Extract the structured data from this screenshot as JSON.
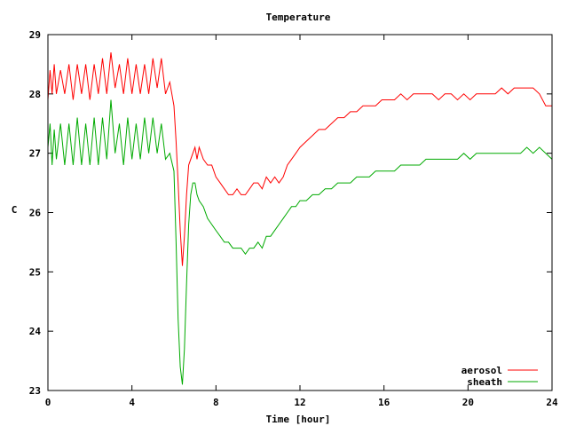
{
  "chart_data": {
    "type": "line",
    "title": "Temperature",
    "xlabel": "Time [hour]",
    "ylabel": "C",
    "xlim": [
      0,
      24
    ],
    "ylim": [
      23,
      29
    ],
    "xticks": [
      0,
      4,
      8,
      12,
      16,
      20,
      24
    ],
    "yticks": [
      23,
      24,
      25,
      26,
      27,
      28,
      29
    ],
    "grid": false,
    "legend_position": "bottom-right",
    "series": [
      {
        "name": "aerosol",
        "color": "#ff0000",
        "x": [
          0.0,
          0.1,
          0.2,
          0.3,
          0.4,
          0.6,
          0.8,
          1.0,
          1.2,
          1.4,
          1.6,
          1.8,
          2.0,
          2.2,
          2.4,
          2.6,
          2.8,
          3.0,
          3.2,
          3.4,
          3.6,
          3.8,
          4.0,
          4.2,
          4.4,
          4.6,
          4.8,
          5.0,
          5.2,
          5.4,
          5.6,
          5.8,
          6.0,
          6.1,
          6.2,
          6.3,
          6.4,
          6.5,
          6.6,
          6.7,
          6.8,
          6.9,
          7.0,
          7.1,
          7.2,
          7.4,
          7.6,
          7.8,
          8.0,
          8.2,
          8.4,
          8.6,
          8.8,
          9.0,
          9.2,
          9.4,
          9.6,
          9.8,
          10.0,
          10.2,
          10.4,
          10.6,
          10.8,
          11.0,
          11.2,
          11.4,
          11.6,
          11.8,
          12.0,
          12.3,
          12.6,
          12.9,
          13.2,
          13.5,
          13.8,
          14.1,
          14.4,
          14.7,
          15.0,
          15.3,
          15.6,
          15.9,
          16.2,
          16.5,
          16.8,
          17.1,
          17.4,
          17.7,
          18.0,
          18.3,
          18.6,
          18.9,
          19.2,
          19.5,
          19.8,
          20.1,
          20.4,
          20.7,
          21.0,
          21.3,
          21.6,
          21.9,
          22.2,
          22.5,
          22.8,
          23.1,
          23.4,
          23.7,
          24.0
        ],
        "y": [
          27.9,
          28.4,
          28.0,
          28.5,
          28.0,
          28.4,
          28.0,
          28.5,
          27.9,
          28.5,
          28.0,
          28.5,
          27.9,
          28.5,
          28.0,
          28.6,
          28.0,
          28.7,
          28.1,
          28.5,
          28.0,
          28.6,
          28.0,
          28.5,
          28.0,
          28.5,
          28.0,
          28.6,
          28.1,
          28.6,
          28.0,
          28.2,
          27.8,
          27.2,
          26.5,
          25.7,
          25.1,
          25.6,
          26.3,
          26.8,
          26.9,
          27.0,
          27.1,
          26.9,
          27.1,
          26.9,
          26.8,
          26.8,
          26.6,
          26.5,
          26.4,
          26.3,
          26.3,
          26.4,
          26.3,
          26.3,
          26.4,
          26.5,
          26.5,
          26.4,
          26.6,
          26.5,
          26.6,
          26.5,
          26.6,
          26.8,
          26.9,
          27.0,
          27.1,
          27.2,
          27.3,
          27.4,
          27.4,
          27.5,
          27.6,
          27.6,
          27.7,
          27.7,
          27.8,
          27.8,
          27.8,
          27.9,
          27.9,
          27.9,
          28.0,
          27.9,
          28.0,
          28.0,
          28.0,
          28.0,
          27.9,
          28.0,
          28.0,
          27.9,
          28.0,
          27.9,
          28.0,
          28.0,
          28.0,
          28.0,
          28.1,
          28.0,
          28.1,
          28.1,
          28.1,
          28.1,
          28.0,
          27.8,
          27.8
        ]
      },
      {
        "name": "sheath",
        "color": "#00aa00",
        "x": [
          0.0,
          0.1,
          0.2,
          0.3,
          0.4,
          0.6,
          0.8,
          1.0,
          1.2,
          1.4,
          1.6,
          1.8,
          2.0,
          2.2,
          2.4,
          2.6,
          2.8,
          3.0,
          3.2,
          3.4,
          3.6,
          3.8,
          4.0,
          4.2,
          4.4,
          4.6,
          4.8,
          5.0,
          5.2,
          5.4,
          5.6,
          5.8,
          6.0,
          6.1,
          6.2,
          6.3,
          6.4,
          6.5,
          6.6,
          6.7,
          6.8,
          6.9,
          7.0,
          7.1,
          7.2,
          7.4,
          7.6,
          7.8,
          8.0,
          8.2,
          8.4,
          8.6,
          8.8,
          9.0,
          9.2,
          9.4,
          9.6,
          9.8,
          10.0,
          10.2,
          10.4,
          10.6,
          10.8,
          11.0,
          11.2,
          11.4,
          11.6,
          11.8,
          12.0,
          12.3,
          12.6,
          12.9,
          13.2,
          13.5,
          13.8,
          14.1,
          14.4,
          14.7,
          15.0,
          15.3,
          15.6,
          15.9,
          16.2,
          16.5,
          16.8,
          17.1,
          17.4,
          17.7,
          18.0,
          18.3,
          18.6,
          18.9,
          19.2,
          19.5,
          19.8,
          20.1,
          20.4,
          20.7,
          21.0,
          21.3,
          21.6,
          21.9,
          22.2,
          22.5,
          22.8,
          23.1,
          23.4,
          23.7,
          24.0
        ],
        "y": [
          27.1,
          27.5,
          26.8,
          27.4,
          26.9,
          27.5,
          26.8,
          27.5,
          26.8,
          27.6,
          26.8,
          27.5,
          26.8,
          27.6,
          26.8,
          27.6,
          26.9,
          27.9,
          27.0,
          27.5,
          26.8,
          27.6,
          26.9,
          27.5,
          26.9,
          27.6,
          27.0,
          27.6,
          27.0,
          27.5,
          26.9,
          27.0,
          26.7,
          25.5,
          24.2,
          23.4,
          23.1,
          23.7,
          24.8,
          25.8,
          26.3,
          26.5,
          26.5,
          26.3,
          26.2,
          26.1,
          25.9,
          25.8,
          25.7,
          25.6,
          25.5,
          25.5,
          25.4,
          25.4,
          25.4,
          25.3,
          25.4,
          25.4,
          25.5,
          25.4,
          25.6,
          25.6,
          25.7,
          25.8,
          25.9,
          26.0,
          26.1,
          26.1,
          26.2,
          26.2,
          26.3,
          26.3,
          26.4,
          26.4,
          26.5,
          26.5,
          26.5,
          26.6,
          26.6,
          26.6,
          26.7,
          26.7,
          26.7,
          26.7,
          26.8,
          26.8,
          26.8,
          26.8,
          26.9,
          26.9,
          26.9,
          26.9,
          26.9,
          26.9,
          27.0,
          26.9,
          27.0,
          27.0,
          27.0,
          27.0,
          27.0,
          27.0,
          27.0,
          27.0,
          27.1,
          27.0,
          27.1,
          27.0,
          26.9
        ]
      }
    ]
  }
}
